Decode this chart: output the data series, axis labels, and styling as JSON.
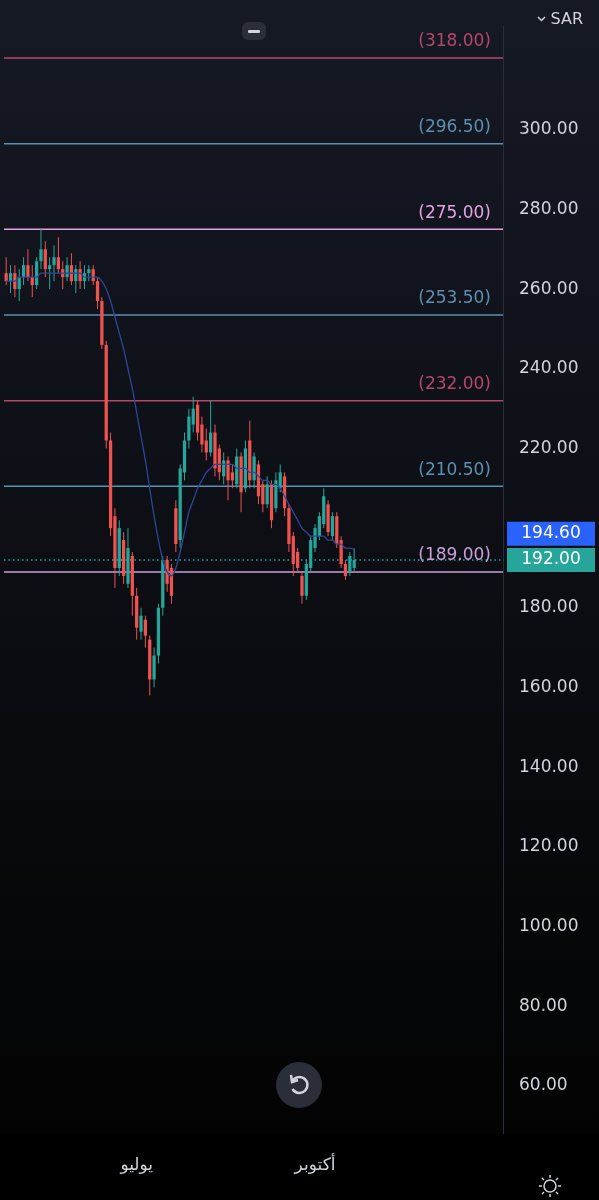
{
  "chart_data": {
    "type": "candlestick",
    "ylabel": "SAR",
    "categories": [
      null,
      null,
      null,
      null,
      null,
      null,
      null,
      null,
      null,
      null,
      null,
      null,
      null,
      null,
      null,
      null,
      null,
      null,
      null,
      null,
      null,
      null,
      null,
      null,
      null,
      null,
      null,
      null,
      null,
      null,
      "يوليو",
      null,
      null,
      null,
      null,
      null,
      null,
      null,
      null,
      null,
      null,
      null,
      null,
      null,
      null,
      null,
      null,
      null,
      null,
      null,
      null,
      null,
      null,
      null,
      null,
      null,
      null,
      null,
      null,
      null,
      null,
      null,
      null,
      null,
      null,
      null,
      null,
      null,
      null,
      null,
      null,
      "أكتوبر",
      null,
      null,
      null,
      null,
      null,
      null,
      null,
      null,
      null
    ],
    "ohlc": [
      [
        264,
        268,
        261,
        262
      ],
      [
        262,
        266,
        259,
        264
      ],
      [
        264,
        266,
        258,
        260
      ],
      [
        260,
        265,
        257,
        263
      ],
      [
        263,
        268,
        261,
        266
      ],
      [
        266,
        270,
        262,
        263
      ],
      [
        263,
        266,
        258,
        261
      ],
      [
        261,
        268,
        260,
        267
      ],
      [
        267,
        275,
        265,
        270
      ],
      [
        270,
        272,
        263,
        265
      ],
      [
        265,
        268,
        260,
        266
      ],
      [
        266,
        271,
        262,
        268
      ],
      [
        268,
        273,
        264,
        265
      ],
      [
        265,
        267,
        260,
        263
      ],
      [
        263,
        268,
        262,
        266
      ],
      [
        266,
        269,
        261,
        262
      ],
      [
        262,
        266,
        259,
        265
      ],
      [
        265,
        267,
        260,
        262
      ],
      [
        262,
        266,
        260,
        264
      ],
      [
        264,
        266,
        262,
        265
      ],
      [
        265,
        266,
        261,
        262
      ],
      [
        262,
        263,
        255,
        257
      ],
      [
        257,
        258,
        245,
        246
      ],
      [
        246,
        247,
        220,
        222
      ],
      [
        222,
        224,
        198,
        200
      ],
      [
        203,
        205,
        185,
        190
      ],
      [
        190,
        202,
        188,
        200
      ],
      [
        197,
        199,
        186,
        188
      ],
      [
        186,
        200,
        185,
        195
      ],
      [
        193,
        194,
        178,
        183
      ],
      [
        183,
        185,
        172,
        175
      ],
      [
        174,
        180,
        172,
        178
      ],
      [
        177,
        178,
        170,
        173
      ],
      [
        172,
        173,
        158,
        162
      ],
      [
        162,
        170,
        160,
        168
      ],
      [
        168,
        181,
        166,
        180
      ],
      [
        180,
        193,
        178,
        192
      ],
      [
        192,
        193,
        184,
        186
      ],
      [
        190,
        191,
        181,
        183
      ],
      [
        205,
        207,
        194,
        196
      ],
      [
        197,
        216,
        195,
        215
      ],
      [
        214,
        224,
        212,
        222
      ],
      [
        222,
        230,
        220,
        228
      ],
      [
        226,
        233,
        224,
        230
      ],
      [
        231,
        232,
        222,
        224
      ],
      [
        226,
        228,
        219,
        221
      ],
      [
        222,
        225,
        217,
        219
      ],
      [
        219,
        232,
        218,
        224
      ],
      [
        224,
        226,
        213,
        215
      ],
      [
        220,
        221,
        212,
        214
      ],
      [
        213,
        219,
        211,
        217
      ],
      [
        217,
        218,
        207,
        212
      ],
      [
        214,
        216,
        210,
        212
      ],
      [
        211,
        220,
        210,
        218
      ],
      [
        218,
        219,
        204,
        209
      ],
      [
        210,
        222,
        209,
        220
      ],
      [
        222,
        227,
        210,
        212
      ],
      [
        212,
        219,
        210,
        218
      ],
      [
        216,
        217,
        206,
        208
      ],
      [
        211,
        212,
        204,
        206
      ],
      [
        206,
        213,
        205,
        211
      ],
      [
        211,
        212,
        200,
        202
      ],
      [
        205,
        214,
        204,
        212
      ],
      [
        210,
        216,
        209,
        214
      ],
      [
        213,
        214,
        203,
        205
      ],
      [
        205,
        206,
        194,
        196
      ],
      [
        198,
        199,
        188,
        191
      ],
      [
        194,
        195,
        189,
        190
      ],
      [
        188,
        189,
        181,
        183
      ],
      [
        183,
        192,
        182,
        191
      ],
      [
        190,
        198,
        189,
        197
      ],
      [
        195,
        201,
        194,
        200
      ],
      [
        198,
        204,
        197,
        203
      ],
      [
        201,
        210,
        200,
        208
      ],
      [
        206,
        207,
        198,
        199
      ],
      [
        198,
        204,
        197,
        203
      ],
      [
        203,
        204,
        195,
        196
      ],
      [
        197,
        198,
        190,
        191
      ],
      [
        191,
        192,
        187,
        188
      ],
      [
        189,
        194,
        188,
        193
      ],
      [
        190,
        195,
        189,
        192
      ]
    ],
    "colors": [
      "#ef5350",
      "#26a69a",
      "#ef5350",
      "#26a69a",
      "#26a69a",
      "#ef5350",
      "#ef5350",
      "#26a69a",
      "#26a69a",
      "#ef5350",
      "#26a69a",
      "#26a69a",
      "#ef5350",
      "#ef5350",
      "#26a69a",
      "#ef5350",
      "#26a69a",
      "#ef5350",
      "#26a69a",
      "#26a69a",
      "#ef5350",
      "#ef5350",
      "#ef5350",
      "#ef5350",
      "#ef5350",
      "#ef5350",
      "#26a69a",
      "#ef5350",
      "#26a69a",
      "#ef5350",
      "#ef5350",
      "#26a69a",
      "#ef5350",
      "#ef5350",
      "#26a69a",
      "#26a69a",
      "#26a69a",
      "#ef5350",
      "#ef5350",
      "#ef5350",
      "#26a69a",
      "#26a69a",
      "#26a69a",
      "#26a69a",
      "#ef5350",
      "#ef5350",
      "#ef5350",
      "#26a69a",
      "#ef5350",
      "#ef5350",
      "#26a69a",
      "#ef5350",
      "#ef5350",
      "#26a69a",
      "#ef5350",
      "#26a69a",
      "#ef5350",
      "#26a69a",
      "#ef5350",
      "#ef5350",
      "#26a69a",
      "#ef5350",
      "#26a69a",
      "#26a69a",
      "#ef5350",
      "#ef5350",
      "#ef5350",
      "#ef5350",
      "#ef5350",
      "#26a69a",
      "#26a69a",
      "#26a69a",
      "#26a69a",
      "#26a69a",
      "#ef5350",
      "#26a69a",
      "#ef5350",
      "#ef5350",
      "#ef5350",
      "#26a69a",
      "#26a69a"
    ],
    "series": [
      {
        "type": "line",
        "color": "#2f4596",
        "values": [
          262,
          262,
          262,
          263,
          263,
          263,
          263,
          263,
          264,
          264,
          264,
          264,
          264,
          264,
          264,
          264,
          264,
          264,
          263,
          263,
          263,
          263,
          262,
          260,
          257,
          253,
          249,
          245,
          240,
          235,
          229,
          223,
          217,
          210,
          203,
          197,
          192,
          189,
          188,
          190,
          194,
          199,
          204,
          207,
          210,
          212,
          214,
          215,
          216,
          216,
          216,
          216,
          216,
          215,
          215,
          215,
          214,
          214,
          213,
          212,
          212,
          211,
          211,
          210,
          208,
          206,
          204,
          202,
          200,
          199,
          198,
          198,
          198,
          198,
          197,
          197,
          196,
          196,
          195,
          195,
          194.6
        ]
      }
    ],
    "marker": "none",
    "ylim": [
      48,
      326
    ],
    "yticks": [
      {
        "value": 60,
        "label": "60.00"
      },
      {
        "value": 80,
        "label": "80.00"
      },
      {
        "value": 100,
        "label": "100.00"
      },
      {
        "value": 120,
        "label": "120.00"
      },
      {
        "value": 140,
        "label": "140.00"
      },
      {
        "value": 160,
        "label": "160.00"
      },
      {
        "value": 180,
        "label": "180.00"
      },
      {
        "value": 220,
        "label": "220.00"
      },
      {
        "value": 240,
        "label": "240.00"
      },
      {
        "value": 260,
        "label": "260.00"
      },
      {
        "value": 280,
        "label": "280.00"
      },
      {
        "value": 300,
        "label": "300.00"
      }
    ],
    "ref_lines": [
      {
        "axis": "y",
        "value": 318,
        "label": "(318.00)",
        "color": "#b5476b"
      },
      {
        "axis": "y",
        "value": 296.5,
        "label": "(296.50)",
        "color": "#5d8fb0"
      },
      {
        "axis": "y",
        "value": 275,
        "label": "(275.00)",
        "color": "#e3a3e3"
      },
      {
        "axis": "y",
        "value": 253.5,
        "label": "(253.50)",
        "color": "#5d8fb0"
      },
      {
        "axis": "y",
        "value": 232,
        "label": "(232.00)",
        "color": "#b5476b"
      },
      {
        "axis": "y",
        "value": 210.5,
        "label": "(210.50)",
        "color": "#5d8fb0"
      },
      {
        "axis": "y",
        "value": 189,
        "label": "(189.00)",
        "color": "#c8a0d8"
      },
      {
        "axis": "y",
        "value": 192,
        "label": "192.00",
        "color": "#26a69a",
        "line_style": "dotted"
      }
    ],
    "annotations": [
      "194.60"
    ],
    "grid": false,
    "legend": false
  }
}
